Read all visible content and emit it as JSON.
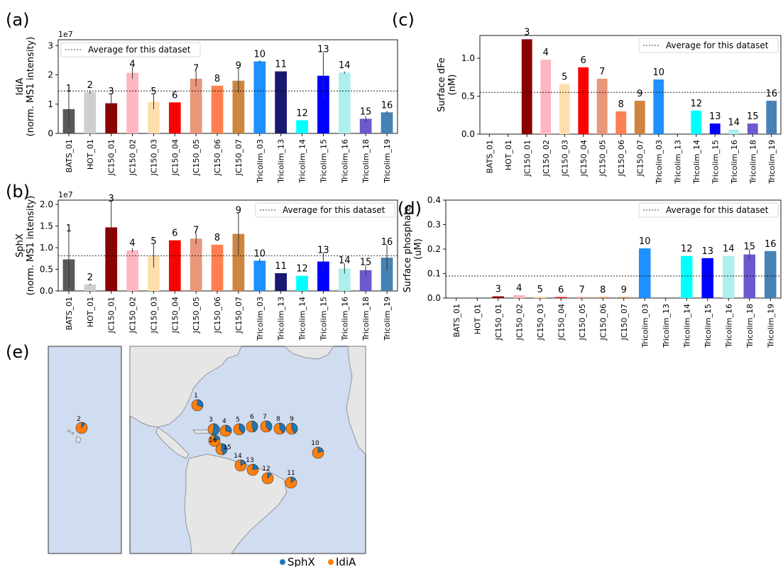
{
  "colors": {
    "BATS_01": "#595959",
    "HOT_01": "#cfcfcf",
    "JC150_01": "#8b0000",
    "JC150_02": "#ffb6c1",
    "JC150_03": "#ffdead",
    "JC150_04": "#ff0000",
    "JC150_05": "#e9967a",
    "JC150_06": "#ff7f50",
    "JC150_07": "#cd853f",
    "Tricolim_03": "#1e90ff",
    "Tricolim_13": "#191970",
    "Tricolim_14": "#00ffff",
    "Tricolim_15": "#0000ff",
    "Tricolim_16": "#afeeee",
    "Tricolim_18": "#6a5acd",
    "Tricolim_19": "#4682b4",
    "sphx": "#1f77b4",
    "idia": "#ff7f0e",
    "ocean": "#d0dcf0",
    "land": "#e6e6e6"
  },
  "chart_data": [
    {
      "panel": "(a)",
      "type": "bar",
      "ylabel": "IdiA",
      "ylabel2": "(norm. MS1 intensity)",
      "scale_label": "1e7",
      "ylim": [
        0,
        3.2
      ],
      "yticks": [
        0,
        1,
        2,
        3
      ],
      "ytick_labels": [
        "0",
        "1",
        "2",
        "3"
      ],
      "average": 1.45,
      "legend": "Average for this dataset",
      "legend_position": "top-left",
      "categories": [
        "BATS_01",
        "HOT_01",
        "JC150_01",
        "JC150_02",
        "JC150_03",
        "JC150_04",
        "JC150_05",
        "JC150_06",
        "JC150_07",
        "Tricolim_03",
        "Tricolim_13",
        "Tricolim_14",
        "Tricolim_15",
        "Tricolim_16",
        "Tricolim_18",
        "Tricolim_19"
      ],
      "labels": [
        "1",
        "2",
        "3",
        "4",
        "5",
        "6",
        "7",
        "8",
        "9",
        "10",
        "11",
        "12",
        "13",
        "14",
        "15",
        "16"
      ],
      "values": [
        0.83,
        1.41,
        1.03,
        2.07,
        1.08,
        1.06,
        1.87,
        1.63,
        1.8,
        2.46,
        2.12,
        0.45,
        1.97,
        2.08,
        0.5,
        0.72
      ],
      "errors": [
        0.6,
        0.05,
        0.3,
        0.2,
        0.25,
        0,
        0.25,
        0,
        0.42,
        0.04,
        0,
        0,
        0.8,
        0.04,
        0.1,
        0.05
      ]
    },
    {
      "panel": "(b)",
      "type": "bar",
      "ylabel": "SphX",
      "ylabel2": "(norm. MS1 intensity)",
      "scale_label": "1e7",
      "ylim": [
        0,
        2.1
      ],
      "yticks": [
        0,
        0.5,
        1.0,
        1.5,
        2.0
      ],
      "ytick_labels": [
        "0.0",
        "0.5",
        "1.0",
        "1.5",
        "2.0"
      ],
      "average": 0.81,
      "legend": "Average for this dataset",
      "legend_position": "top-right",
      "categories": [
        "BATS_01",
        "HOT_01",
        "JC150_01",
        "JC150_02",
        "JC150_03",
        "JC150_04",
        "JC150_05",
        "JC150_06",
        "JC150_07",
        "Tricolim_03",
        "Tricolim_13",
        "Tricolim_14",
        "Tricolim_15",
        "Tricolim_16",
        "Tricolim_18",
        "Tricolim_19"
      ],
      "labels": [
        "1",
        "2",
        "3",
        "4",
        "5",
        "6",
        "7",
        "8",
        "9",
        "10",
        "11",
        "12",
        "13",
        "14",
        "15",
        "16"
      ],
      "values": [
        0.73,
        0.15,
        1.47,
        0.94,
        0.81,
        1.17,
        1.21,
        1.07,
        1.32,
        0.7,
        0.41,
        0.35,
        0.68,
        0.52,
        0.48,
        0.77
      ],
      "errors": [
        0.65,
        0.02,
        0.6,
        0.05,
        0.27,
        0,
        0.13,
        0,
        0.48,
        0.05,
        0,
        0,
        0.2,
        0.12,
        0.12,
        0.3
      ]
    },
    {
      "panel": "(c)",
      "type": "bar",
      "ylabel": "Surface dFe",
      "ylabel2": "(nM)",
      "scale_label": "",
      "ylim": [
        0,
        1.3
      ],
      "yticks": [
        0,
        0.5,
        1.0
      ],
      "ytick_labels": [
        "0.0",
        "0.5",
        "1.0"
      ],
      "average": 0.55,
      "legend": "Average for this dataset",
      "legend_position": "top-right",
      "categories": [
        "BATS_01",
        "HOT_01",
        "JC150_01",
        "JC150_02",
        "JC150_03",
        "JC150_04",
        "JC150_05",
        "JC150_06",
        "JC150_07",
        "Tricolim_03",
        "Tricolim_13",
        "Tricolim_14",
        "Tricolim_15",
        "Tricolim_16",
        "Tricolim_18",
        "Tricolim_19"
      ],
      "labels": [
        "",
        "",
        "3",
        "4",
        "5",
        "6",
        "7",
        "8",
        "9",
        "10",
        "",
        "12",
        "13",
        "14",
        "15",
        "16"
      ],
      "values": [
        0,
        0,
        1.25,
        0.98,
        0.66,
        0.88,
        0.73,
        0.3,
        0.44,
        0.72,
        0,
        0.31,
        0.14,
        0.06,
        0.14,
        0.44
      ],
      "errors": [
        0,
        0,
        0,
        0,
        0,
        0,
        0,
        0,
        0,
        0,
        0,
        0,
        0,
        0,
        0,
        0
      ]
    },
    {
      "panel": "(d)",
      "type": "bar",
      "ylabel": "Surface phosphate",
      "ylabel2": "(uM)",
      "scale_label": "",
      "ylim": [
        0,
        0.4
      ],
      "yticks": [
        0,
        0.1,
        0.2,
        0.3,
        0.4
      ],
      "ytick_labels": [
        "0.0",
        "0.1",
        "0.2",
        "0.3",
        "0.4"
      ],
      "average": 0.09,
      "legend": "Average for this dataset",
      "legend_position": "top-right",
      "categories": [
        "BATS_01",
        "HOT_01",
        "JC150_01",
        "JC150_02",
        "JC150_03",
        "JC150_04",
        "JC150_05",
        "JC150_06",
        "JC150_07",
        "Tricolim_03",
        "Tricolim_13",
        "Tricolim_14",
        "Tricolim_15",
        "Tricolim_16",
        "Tricolim_18",
        "Tricolim_19"
      ],
      "labels": [
        "",
        "",
        "3",
        "4",
        "5",
        "6",
        "7",
        "8",
        "9",
        "10",
        "",
        "12",
        "13",
        "14",
        "15",
        "16"
      ],
      "values": [
        0,
        0,
        0.007,
        0.012,
        0.006,
        0.004,
        0.004,
        0.004,
        0.004,
        0.203,
        0,
        0.172,
        0.163,
        0.172,
        0.178,
        0.192
      ],
      "errors": [
        0,
        0,
        0,
        0,
        0,
        0,
        0,
        0,
        0,
        0,
        0,
        0,
        0,
        0,
        0.02,
        0
      ]
    }
  ],
  "map": {
    "panel": "(e)",
    "legend": [
      {
        "key": "sphx",
        "label": "SphX"
      },
      {
        "key": "idia",
        "label": "IdiA"
      }
    ],
    "stations": [
      {
        "label": "1",
        "sphx_fraction": 0.3
      },
      {
        "label": "2",
        "sphx_fraction": 0.1
      },
      {
        "label": "3",
        "sphx_fraction": 0.55
      },
      {
        "label": "4",
        "sphx_fraction": 0.3
      },
      {
        "label": "5",
        "sphx_fraction": 0.38
      },
      {
        "label": "6",
        "sphx_fraction": 0.45
      },
      {
        "label": "7",
        "sphx_fraction": 0.4
      },
      {
        "label": "8",
        "sphx_fraction": 0.4
      },
      {
        "label": "9",
        "sphx_fraction": 0.42
      },
      {
        "label": "10",
        "sphx_fraction": 0.2
      },
      {
        "label": "11",
        "sphx_fraction": 0.15
      },
      {
        "label": "12",
        "sphx_fraction": 0.12
      },
      {
        "label": "13",
        "sphx_fraction": 0.22
      },
      {
        "label": "14",
        "sphx_fraction": 0.18
      },
      {
        "label": "15",
        "sphx_fraction": 0.45
      },
      {
        "label": "16",
        "sphx_fraction": 0.2
      }
    ]
  }
}
